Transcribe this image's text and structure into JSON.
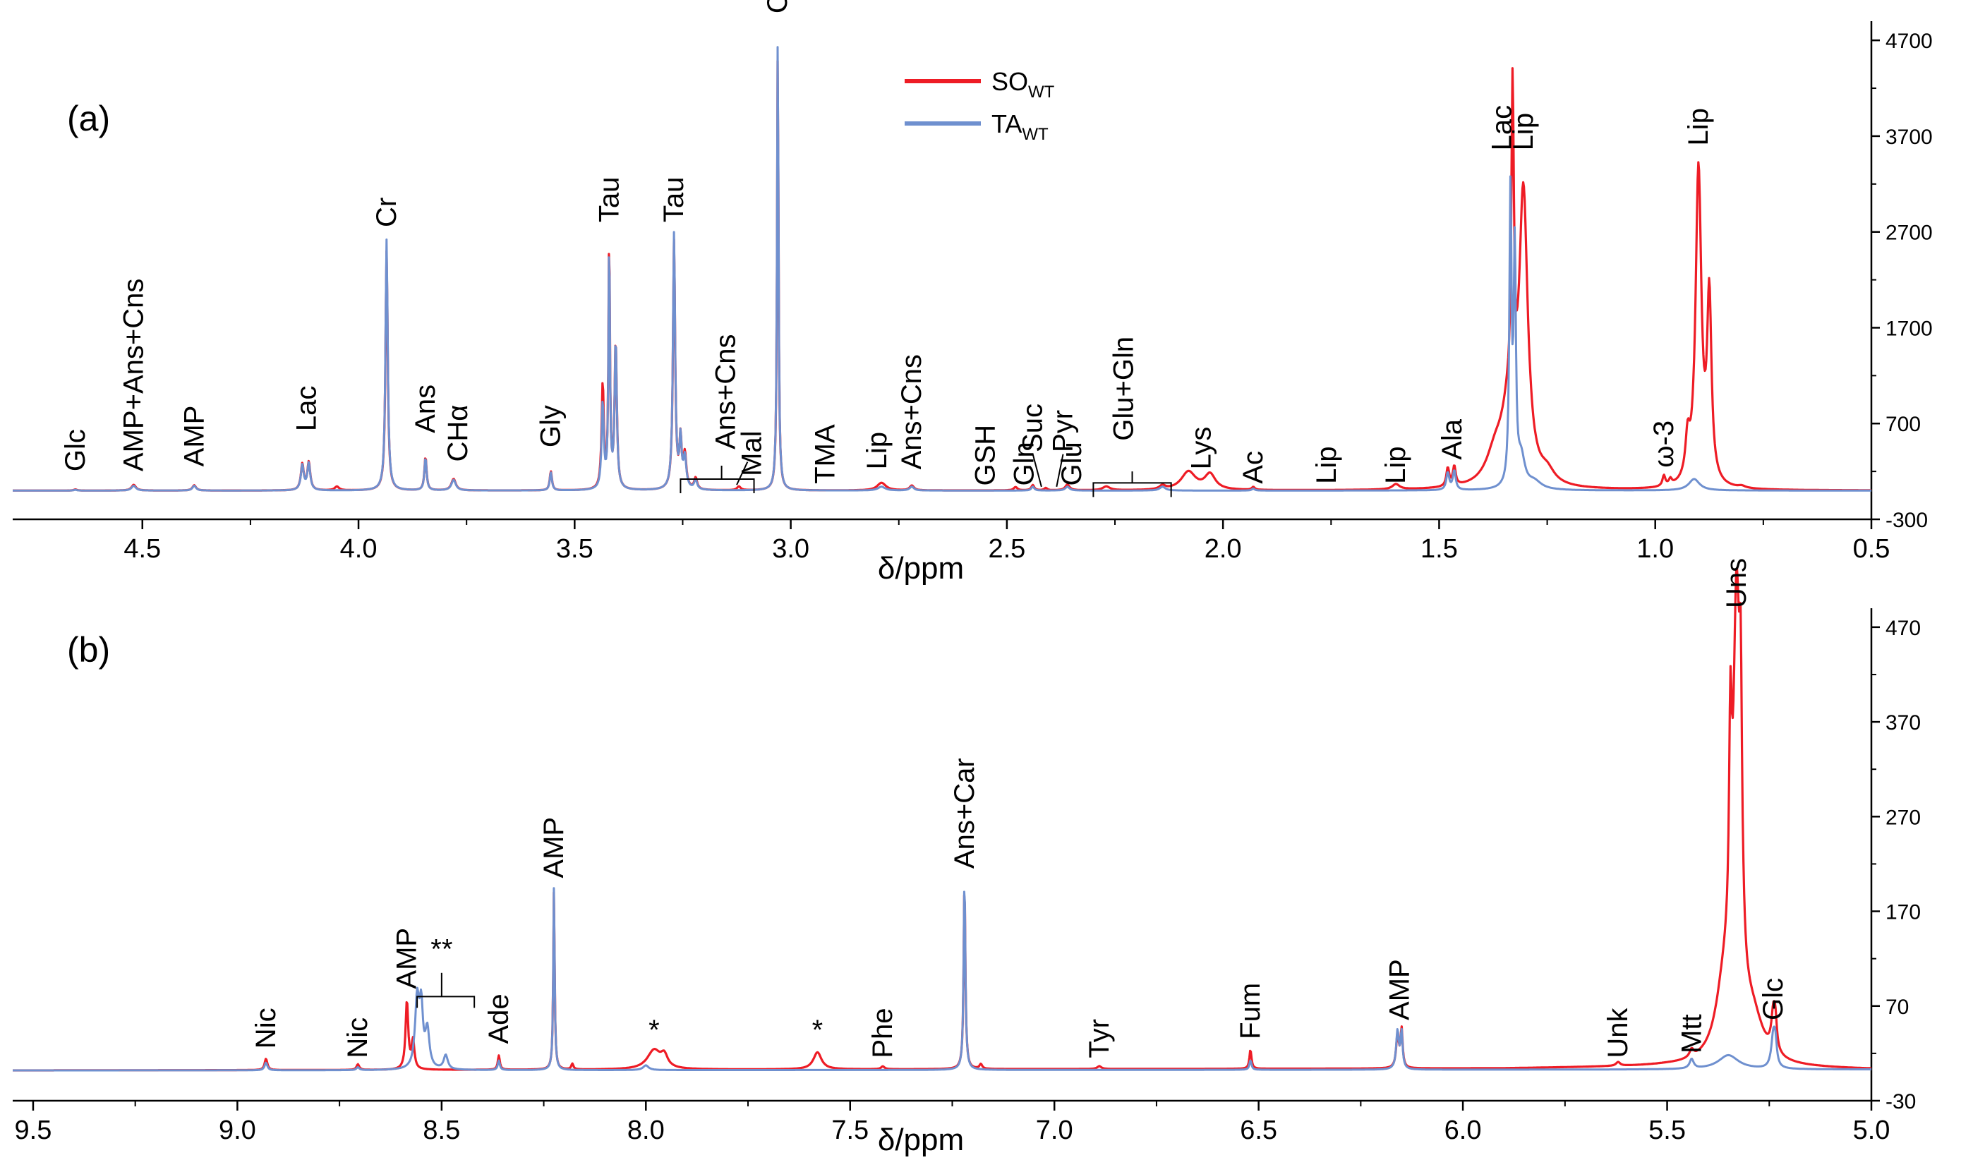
{
  "chart_data": [
    {
      "type": "line",
      "panel_label": "(a)",
      "xlabel": "δ/ppm",
      "xlim": [
        4.8,
        0.5
      ],
      "ylim": [
        -300,
        4900
      ],
      "x_ticks": [
        "4.5",
        "4.0",
        "3.5",
        "3.0",
        "2.5",
        "2.0",
        "1.5",
        "1.0",
        "0.5"
      ],
      "y_ticks": [
        "-300",
        "700",
        "1700",
        "2700",
        "3700",
        "4700"
      ],
      "legend": {
        "position": "top-center",
        "entries": [
          {
            "main": "SO",
            "sub": "WT",
            "color": "#ee1c25"
          },
          {
            "main": "TA",
            "sub": "WT",
            "color": "#6f90cf"
          }
        ]
      },
      "series": [
        {
          "name": "SOWT",
          "color": "#ee1c25",
          "baseline": 0,
          "peaks": [
            [
              4.655,
              12,
              0.004
            ],
            [
              4.52,
              60,
              0.006
            ],
            [
              4.38,
              55,
              0.005
            ],
            [
              4.13,
              270,
              0.004
            ],
            [
              4.115,
              290,
              0.004
            ],
            [
              4.05,
              40,
              0.006
            ],
            [
              3.935,
              2500,
              0.003
            ],
            [
              3.845,
              350,
              0.003
            ],
            [
              3.78,
              120,
              0.006
            ],
            [
              3.555,
              200,
              0.003
            ],
            [
              3.435,
              1100,
              0.003
            ],
            [
              3.42,
              2650,
              0.002
            ],
            [
              3.405,
              1550,
              0.003
            ],
            [
              3.27,
              2600,
              0.003
            ],
            [
              3.255,
              500,
              0.003
            ],
            [
              3.245,
              350,
              0.004
            ],
            [
              3.22,
              120,
              0.004
            ],
            [
              3.12,
              40,
              0.005
            ],
            [
              3.03,
              4650,
              0.002
            ],
            [
              2.79,
              80,
              0.012
            ],
            [
              2.72,
              50,
              0.006
            ],
            [
              2.48,
              35,
              0.005
            ],
            [
              2.44,
              55,
              0.004
            ],
            [
              2.41,
              25,
              0.004
            ],
            [
              2.36,
              60,
              0.006
            ],
            [
              2.27,
              40,
              0.01
            ],
            [
              2.14,
              40,
              0.008
            ],
            [
              2.08,
              190,
              0.02
            ],
            [
              2.03,
              160,
              0.015
            ],
            [
              1.93,
              30,
              0.004
            ],
            [
              1.6,
              55,
              0.01
            ],
            [
              1.48,
              190,
              0.004
            ],
            [
              1.465,
              200,
              0.004
            ],
            [
              1.33,
              3300,
              0.0035
            ],
            [
              1.305,
              2950,
              0.012
            ],
            [
              1.34,
              600,
              0.02
            ],
            [
              1.37,
              300,
              0.025
            ],
            [
              1.25,
              120,
              0.02
            ],
            [
              0.98,
              110,
              0.004
            ],
            [
              0.965,
              60,
              0.004
            ],
            [
              0.9,
              3300,
              0.008
            ],
            [
              0.875,
              1900,
              0.006
            ],
            [
              0.925,
              400,
              0.006
            ],
            [
              0.8,
              20,
              0.01
            ]
          ]
        },
        {
          "name": "TAWT",
          "color": "#6f90cf",
          "baseline": 0,
          "peaks": [
            [
              4.655,
              8,
              0.004
            ],
            [
              4.52,
              50,
              0.006
            ],
            [
              4.38,
              50,
              0.005
            ],
            [
              4.13,
              260,
              0.004
            ],
            [
              4.115,
              280,
              0.004
            ],
            [
              3.935,
              2620,
              0.003
            ],
            [
              3.845,
              340,
              0.003
            ],
            [
              3.78,
              110,
              0.006
            ],
            [
              3.555,
              190,
              0.003
            ],
            [
              3.435,
              900,
              0.003
            ],
            [
              3.42,
              2620,
              0.002
            ],
            [
              3.405,
              1550,
              0.003
            ],
            [
              3.27,
              2680,
              0.003
            ],
            [
              3.255,
              500,
              0.003
            ],
            [
              3.245,
              320,
              0.004
            ],
            [
              3.22,
              100,
              0.004
            ],
            [
              3.03,
              4800,
              0.002
            ],
            [
              2.79,
              40,
              0.01
            ],
            [
              2.72,
              40,
              0.006
            ],
            [
              2.44,
              40,
              0.004
            ],
            [
              2.36,
              40,
              0.006
            ],
            [
              2.14,
              40,
              0.008
            ],
            [
              1.93,
              20,
              0.004
            ],
            [
              1.48,
              180,
              0.004
            ],
            [
              1.465,
              200,
              0.004
            ],
            [
              1.335,
              3050,
              0.003
            ],
            [
              1.325,
              2400,
              0.003
            ],
            [
              1.31,
              300,
              0.01
            ],
            [
              1.28,
              80,
              0.02
            ],
            [
              0.91,
              120,
              0.015
            ]
          ]
        }
      ],
      "annotations": [
        {
          "text": "Glc",
          "x": 4.655,
          "ytop": 200
        },
        {
          "text": "AMP+Ans+Cns",
          "x": 4.52,
          "ytop": 200
        },
        {
          "text": "AMP",
          "x": 4.38,
          "ytop": 250
        },
        {
          "text": "Lac",
          "x": 4.12,
          "ytop": 620
        },
        {
          "text": "Cr",
          "x": 3.935,
          "ytop": 2750
        },
        {
          "text": "Ans",
          "x": 3.845,
          "ytop": 600
        },
        {
          "text": "CHα",
          "x": 3.77,
          "ytop": 300
        },
        {
          "text": "Gly",
          "x": 3.555,
          "ytop": 450
        },
        {
          "text": "Tau",
          "x": 3.42,
          "ytop": 2800
        },
        {
          "text": "Tau",
          "x": 3.27,
          "ytop": 2800
        },
        {
          "text": "Ans+Cns",
          "x": 3.15,
          "ytop": 430
        },
        {
          "text": "Mal",
          "x": 3.09,
          "ytop": 150
        },
        {
          "text": "Cr",
          "x": 3.03,
          "ytop": 4980
        },
        {
          "text": "TMA",
          "x": 2.92,
          "ytop": 70
        },
        {
          "text": "Lip",
          "x": 2.8,
          "ytop": 220
        },
        {
          "text": "Ans+Cns",
          "x": 2.72,
          "ytop": 220
        },
        {
          "text": "GSH",
          "x": 2.55,
          "ytop": 50
        },
        {
          "text": "Gln",
          "x": 2.46,
          "ytop": 50
        },
        {
          "text": "Suc",
          "x": 2.44,
          "ytop": 400
        },
        {
          "text": "Pyr",
          "x": 2.37,
          "ytop": 400
        },
        {
          "text": "Glu",
          "x": 2.35,
          "ytop": 50
        },
        {
          "text": "Glu+Gln",
          "x": 2.23,
          "ytop": 520
        },
        {
          "text": "Lys",
          "x": 2.05,
          "ytop": 220
        },
        {
          "text": "Ac",
          "x": 1.93,
          "ytop": 70
        },
        {
          "text": "Lip",
          "x": 1.76,
          "ytop": 70
        },
        {
          "text": "Lip",
          "x": 1.6,
          "ytop": 70
        },
        {
          "text": "Ala",
          "x": 1.47,
          "ytop": 320
        },
        {
          "text": "Lac",
          "x": 1.355,
          "ytop": 3550
        },
        {
          "text": "Lip",
          "x": 1.305,
          "ytop": 3550
        },
        {
          "text": "ω-3",
          "x": 0.98,
          "ytop": 240
        },
        {
          "text": "Lip",
          "x": 0.9,
          "ytop": 3600
        }
      ]
    },
    {
      "type": "line",
      "panel_label": "(b)",
      "xlabel": "δ/ppm",
      "xlim": [
        9.55,
        5.0
      ],
      "ylim": [
        -30,
        490
      ],
      "x_ticks": [
        "9.5",
        "9.0",
        "8.5",
        "8.0",
        "7.5",
        "7.0",
        "6.5",
        "6.0",
        "5.5",
        "5.0"
      ],
      "y_ticks": [
        "-30",
        "70",
        "170",
        "270",
        "370",
        "470"
      ],
      "series": [
        {
          "name": "SOWT",
          "color": "#ee1c25",
          "baseline": [
            [
              9.55,
              2
            ],
            [
              5.9,
              4
            ],
            [
              5.5,
              6
            ],
            [
              5.0,
              3
            ]
          ],
          "peaks": [
            [
              8.93,
              12,
              0.004
            ],
            [
              8.705,
              6,
              0.004
            ],
            [
              8.585,
              72,
              0.004
            ],
            [
              8.57,
              30,
              0.004
            ],
            [
              8.36,
              15,
              0.003
            ],
            [
              8.225,
              190,
              0.002
            ],
            [
              8.18,
              6,
              0.003
            ],
            [
              7.98,
              20,
              0.02
            ],
            [
              7.955,
              12,
              0.01
            ],
            [
              7.58,
              18,
              0.012
            ],
            [
              7.42,
              3,
              0.005
            ],
            [
              7.22,
              200,
              0.0025
            ],
            [
              7.18,
              5,
              0.004
            ],
            [
              6.89,
              3,
              0.006
            ],
            [
              6.52,
              20,
              0.003
            ],
            [
              6.16,
              35,
              0.004
            ],
            [
              6.15,
              40,
              0.003
            ],
            [
              5.62,
              4,
              0.006
            ],
            [
              5.44,
              8,
              0.006
            ],
            [
              5.33,
              440,
              0.01
            ],
            [
              5.32,
              220,
              0.004
            ],
            [
              5.345,
              220,
              0.004
            ],
            [
              5.29,
              40,
              0.03
            ],
            [
              5.36,
              70,
              0.025
            ],
            [
              5.24,
              40,
              0.006
            ],
            [
              5.235,
              25,
              0.004
            ]
          ]
        },
        {
          "name": "TAWT",
          "color": "#6f90cf",
          "baseline": [
            [
              9.55,
              2
            ],
            [
              5.0,
              3
            ]
          ],
          "peaks": [
            [
              8.93,
              8,
              0.004
            ],
            [
              8.705,
              3,
              0.004
            ],
            [
              8.56,
              72,
              0.006
            ],
            [
              8.55,
              60,
              0.005
            ],
            [
              8.535,
              40,
              0.006
            ],
            [
              8.49,
              15,
              0.006
            ],
            [
              8.36,
              10,
              0.003
            ],
            [
              8.225,
              195,
              0.002
            ],
            [
              8.0,
              5,
              0.008
            ],
            [
              7.22,
              205,
              0.0025
            ],
            [
              6.52,
              10,
              0.003
            ],
            [
              6.16,
              40,
              0.004
            ],
            [
              6.15,
              38,
              0.003
            ],
            [
              5.44,
              10,
              0.006
            ],
            [
              5.35,
              15,
              0.03
            ],
            [
              5.24,
              35,
              0.006
            ],
            [
              5.235,
              20,
              0.004
            ]
          ]
        }
      ],
      "annotations": [
        {
          "text": "Nic",
          "x": 8.93,
          "ytop": 25
        },
        {
          "text": "Nic",
          "x": 8.705,
          "ytop": 15
        },
        {
          "text": "AMP",
          "x": 8.585,
          "ytop": 88
        },
        {
          "text": "**",
          "x": 8.5,
          "ytop": 120
        },
        {
          "text": "Ade",
          "x": 8.36,
          "ytop": 30
        },
        {
          "text": "AMP",
          "x": 8.225,
          "ytop": 205
        },
        {
          "text": "*",
          "x": 7.98,
          "ytop": 35
        },
        {
          "text": "*",
          "x": 7.58,
          "ytop": 35
        },
        {
          "text": "Phe",
          "x": 7.42,
          "ytop": 15
        },
        {
          "text": "Ans+Car",
          "x": 7.22,
          "ytop": 215
        },
        {
          "text": "Tyr",
          "x": 6.89,
          "ytop": 15
        },
        {
          "text": "Fum",
          "x": 6.52,
          "ytop": 35
        },
        {
          "text": "AMP",
          "x": 6.155,
          "ytop": 55
        },
        {
          "text": "Unk",
          "x": 5.62,
          "ytop": 15
        },
        {
          "text": "Mtt",
          "x": 5.44,
          "ytop": 20
        },
        {
          "text": "Uns",
          "x": 5.33,
          "ytop": 490
        },
        {
          "text": "Glc",
          "x": 5.24,
          "ytop": 55
        }
      ]
    }
  ]
}
